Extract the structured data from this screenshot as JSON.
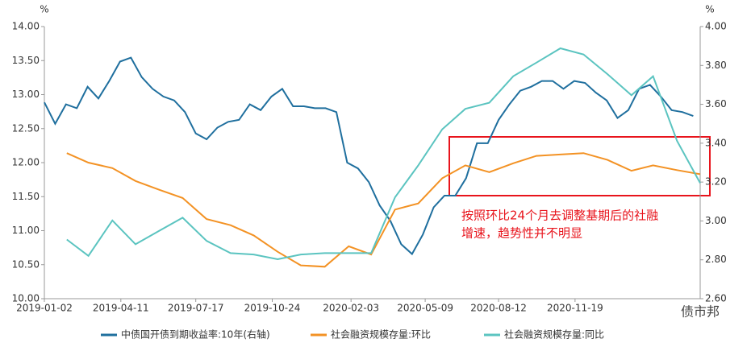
{
  "chart_data": {
    "type": "line",
    "y_unit": "%",
    "y2_unit": "%",
    "xlim": [
      "2019-01-02",
      "2021-04-30"
    ],
    "xticks": [
      "2019-01-02",
      "2019-04-11",
      "2019-07-17",
      "2019-10-24",
      "2020-02-03",
      "2020-05-09",
      "2020-08-12",
      "2020-11-19"
    ],
    "ylim": [
      10,
      14
    ],
    "yticks": [
      {
        "value": 10,
        "label": "10.00"
      },
      {
        "value": 10.5,
        "label": "10.50"
      },
      {
        "value": 11,
        "label": "11.00"
      },
      {
        "value": 11.5,
        "label": "11.50"
      },
      {
        "value": 12,
        "label": "12.00"
      },
      {
        "value": 12.5,
        "label": "12.50"
      },
      {
        "value": 13,
        "label": "13.00"
      },
      {
        "value": 13.5,
        "label": "13.50"
      },
      {
        "value": 14,
        "label": "14.00"
      }
    ],
    "y2lim": [
      2.6,
      4.0
    ],
    "y2ticks": [
      {
        "value": 2.6,
        "label": "2.60"
      },
      {
        "value": 2.8,
        "label": "2.80"
      },
      {
        "value": 3.0,
        "label": "3.00"
      },
      {
        "value": 3.2,
        "label": "3.20"
      },
      {
        "value": 3.4,
        "label": "3.40"
      },
      {
        "value": 3.6,
        "label": "3.60"
      },
      {
        "value": 3.8,
        "label": "3.80"
      },
      {
        "value": 4.0,
        "label": "4.00"
      }
    ],
    "grid": false,
    "series": [
      {
        "name": "中债国开债到期收益率:10年(右轴)",
        "color": "#1f6f9e",
        "axis": "y2",
        "x": [
          "2019-01-02",
          "2019-01-16",
          "2019-01-30",
          "2019-02-13",
          "2019-02-27",
          "2019-03-13",
          "2019-03-27",
          "2019-04-10",
          "2019-04-24",
          "2019-05-08",
          "2019-05-22",
          "2019-06-05",
          "2019-06-19",
          "2019-07-03",
          "2019-07-17",
          "2019-07-31",
          "2019-08-14",
          "2019-08-28",
          "2019-09-11",
          "2019-09-25",
          "2019-10-09",
          "2019-10-23",
          "2019-11-06",
          "2019-11-20",
          "2019-12-04",
          "2019-12-18",
          "2020-01-01",
          "2020-01-15",
          "2020-01-29",
          "2020-02-12",
          "2020-02-26",
          "2020-03-11",
          "2020-03-25",
          "2020-04-08",
          "2020-04-22",
          "2020-05-06",
          "2020-05-20",
          "2020-06-03",
          "2020-06-17",
          "2020-07-01",
          "2020-07-15",
          "2020-07-29",
          "2020-08-12",
          "2020-08-26",
          "2020-09-09",
          "2020-09-23",
          "2020-10-07",
          "2020-10-21",
          "2020-11-04",
          "2020-11-18",
          "2020-12-02",
          "2020-12-16",
          "2020-12-30",
          "2021-01-13",
          "2021-01-27",
          "2021-02-10",
          "2021-02-24",
          "2021-03-10",
          "2021-03-24",
          "2021-04-07",
          "2021-04-21"
        ],
        "values": [
          3.61,
          3.5,
          3.6,
          3.58,
          3.69,
          3.63,
          3.72,
          3.82,
          3.84,
          3.74,
          3.68,
          3.64,
          3.62,
          3.56,
          3.45,
          3.42,
          3.48,
          3.51,
          3.52,
          3.6,
          3.57,
          3.64,
          3.68,
          3.59,
          3.59,
          3.58,
          3.58,
          3.56,
          3.3,
          3.27,
          3.2,
          3.08,
          3.0,
          2.88,
          2.83,
          2.93,
          3.07,
          3.13,
          3.13,
          3.22,
          3.4,
          3.4,
          3.52,
          3.6,
          3.67,
          3.69,
          3.72,
          3.72,
          3.68,
          3.72,
          3.71,
          3.66,
          3.62,
          3.53,
          3.57,
          3.68,
          3.7,
          3.64,
          3.57,
          3.56,
          3.54
        ]
      },
      {
        "name": "社会融资规模存量:环比",
        "color": "#f39224",
        "x": [
          "2019-01-31",
          "2019-02-28",
          "2019-03-31",
          "2019-04-30",
          "2019-05-31",
          "2019-06-30",
          "2019-07-31",
          "2019-08-31",
          "2019-09-30",
          "2019-10-31",
          "2019-11-30",
          "2019-12-31",
          "2020-01-31",
          "2020-02-29",
          "2020-03-31",
          "2020-04-30",
          "2020-05-31",
          "2020-06-30",
          "2020-07-31",
          "2020-08-31",
          "2020-09-30",
          "2020-10-31",
          "2020-11-30",
          "2020-12-31",
          "2021-01-31",
          "2021-02-28",
          "2021-03-31",
          "2021-04-30"
        ],
        "values": [
          12.14,
          12.0,
          11.92,
          11.73,
          11.6,
          11.48,
          11.17,
          11.08,
          10.93,
          10.69,
          10.49,
          10.47,
          10.77,
          10.65,
          11.31,
          11.4,
          11.77,
          11.96,
          11.86,
          11.99,
          12.1,
          12.12,
          12.14,
          12.04,
          11.88,
          11.96,
          11.89,
          11.83
        ]
      },
      {
        "name": "社会融资规模存量:同比",
        "color": "#5bc4c0",
        "x": [
          "2019-01-31",
          "2019-02-28",
          "2019-03-31",
          "2019-04-30",
          "2019-05-31",
          "2019-06-30",
          "2019-07-31",
          "2019-08-31",
          "2019-09-30",
          "2019-10-31",
          "2019-11-30",
          "2019-12-31",
          "2020-01-31",
          "2020-02-29",
          "2020-03-31",
          "2020-04-30",
          "2020-05-31",
          "2020-06-30",
          "2020-07-31",
          "2020-08-31",
          "2020-09-30",
          "2020-10-31",
          "2020-11-30",
          "2020-12-31",
          "2021-01-31",
          "2021-02-28",
          "2021-03-31",
          "2021-04-30"
        ],
        "values": [
          10.87,
          10.63,
          11.15,
          10.8,
          11.0,
          11.19,
          10.85,
          10.67,
          10.65,
          10.58,
          10.65,
          10.67,
          10.67,
          10.67,
          11.49,
          11.96,
          12.49,
          12.79,
          12.88,
          13.27,
          13.47,
          13.68,
          13.59,
          13.3,
          12.99,
          13.27,
          12.32,
          11.7
        ]
      }
    ],
    "annotation": [
      "按照环比24个月去调整基期后的社融",
      "增速，趋势性并不明显"
    ],
    "watermark": "债市邦"
  }
}
